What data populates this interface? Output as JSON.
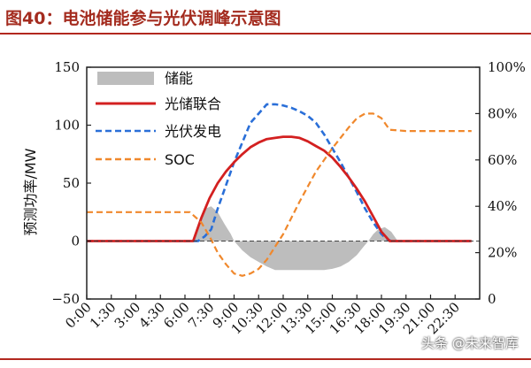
{
  "figure": {
    "title": "图40：电池储能参与光伏调峰示意图",
    "watermark": "头条 @未来智库"
  },
  "chart_data": {
    "type": "line",
    "ylabel": "预测功率/MW",
    "ylim": [
      -50,
      150
    ],
    "y2lim": [
      0,
      100
    ],
    "yticks": [
      "150",
      "100",
      "50",
      "0",
      "−50"
    ],
    "y2ticks": [
      "100%",
      "80%",
      "60%",
      "40%",
      "20%",
      "0"
    ],
    "xticks": [
      "0:00",
      "1:30",
      "3:00",
      "4:30",
      "6:00",
      "7:30",
      "9:00",
      "10:30",
      "12:00",
      "13:30",
      "15:00",
      "16:30",
      "18:00",
      "19:30",
      "21:00",
      "22:30"
    ],
    "legend_position": "top-left",
    "colors": {
      "storage": "#bdbdbd",
      "combined": "#d32020",
      "pv": "#2a6fd8",
      "soc": "#f0882c",
      "axis": "#222222",
      "title": "#a42c1f",
      "rule": "#b2281f"
    },
    "series": [
      {
        "name": "储能",
        "style": "area",
        "axis": "left",
        "x": [
          6.5,
          6.9,
          7.25,
          7.6,
          8.0,
          8.4,
          8.8,
          9.0,
          9.5,
          10.0,
          10.5,
          11.0,
          11.5,
          12.0,
          12.5,
          13.0,
          13.5,
          14.0,
          14.5,
          15.0,
          15.5,
          16.0,
          16.5,
          16.9,
          17.2,
          17.5,
          17.8,
          18.2,
          18.6,
          19.0
        ],
        "values": [
          0,
          18,
          28,
          30,
          25,
          15,
          6,
          0,
          -8,
          -14,
          -18,
          -22,
          -25,
          -25,
          -25,
          -25,
          -25,
          -25,
          -25,
          -24,
          -22,
          -18,
          -12,
          -5,
          0,
          6,
          10,
          12,
          8,
          0
        ]
      },
      {
        "name": "光储联合",
        "style": "solid",
        "axis": "left",
        "x": [
          0,
          6.0,
          6.5,
          7.0,
          7.5,
          8.0,
          8.5,
          9.0,
          9.5,
          10.0,
          10.5,
          11.0,
          11.5,
          12.0,
          12.5,
          13.0,
          13.5,
          14.0,
          14.5,
          15.0,
          15.5,
          16.0,
          16.5,
          17.0,
          17.5,
          18.0,
          18.5,
          19.0,
          23.5
        ],
        "values": [
          0,
          0,
          0,
          20,
          37,
          50,
          60,
          68,
          75,
          81,
          85,
          88,
          89,
          90,
          90,
          89,
          86,
          82,
          78,
          72,
          64,
          55,
          45,
          34,
          21,
          8,
          0,
          0,
          0
        ]
      },
      {
        "name": "光伏发电",
        "style": "dashed",
        "axis": "left",
        "x": [
          0,
          6.8,
          7.2,
          7.6,
          8.0,
          8.5,
          9.0,
          9.5,
          10.0,
          10.5,
          11.0,
          11.5,
          12.0,
          12.5,
          13.0,
          13.5,
          14.0,
          14.5,
          15.0,
          15.5,
          16.0,
          16.5,
          17.0,
          17.5,
          18.0,
          18.3,
          18.6,
          19.0,
          23.5
        ],
        "values": [
          0,
          0,
          4,
          10,
          28,
          48,
          68,
          85,
          102,
          110,
          118,
          118,
          117,
          115,
          112,
          108,
          102,
          92,
          80,
          68,
          55,
          42,
          28,
          16,
          6,
          2,
          0,
          0,
          0
        ]
      },
      {
        "name": "SOC",
        "style": "dashed",
        "axis": "right",
        "x": [
          0,
          6.3,
          7.0,
          7.5,
          8.0,
          8.5,
          9.0,
          9.5,
          10.0,
          10.5,
          11.0,
          12.0,
          13.0,
          14.0,
          15.0,
          16.0,
          16.5,
          17.0,
          17.5,
          18.0,
          18.5,
          19.5,
          23.5
        ],
        "values": [
          37.5,
          37.5,
          33,
          27,
          20,
          15,
          11,
          10,
          11,
          13,
          17,
          28,
          42,
          55,
          65,
          74,
          78,
          80,
          80,
          78,
          73,
          72.5,
          72.5
        ]
      }
    ]
  }
}
